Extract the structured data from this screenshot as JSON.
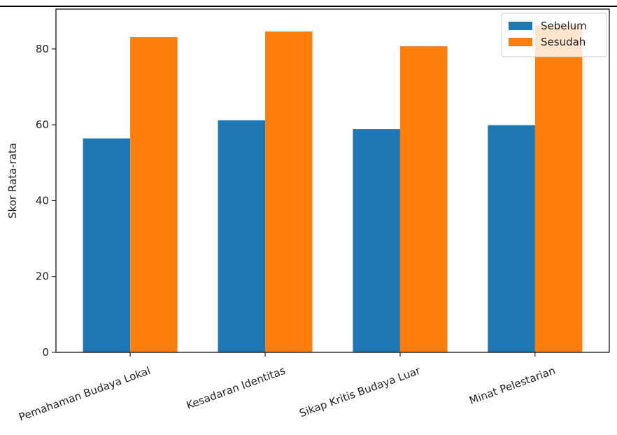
{
  "chart_data": {
    "type": "bar",
    "categories": [
      "Pemahaman Budaya Lokal",
      "Kesadaran Identitas",
      "Sikap Kritis Budaya Luar",
      "Minat Pelestarian"
    ],
    "series": [
      {
        "name": "Sebelum",
        "values": [
          56.4,
          61.2,
          58.9,
          59.9
        ],
        "color": "#1f77b4"
      },
      {
        "name": "Sesudah",
        "values": [
          83.1,
          84.6,
          80.7,
          86.2
        ],
        "color": "#ff7f0e"
      }
    ],
    "xlabel": "",
    "ylabel": "Skor Rata-rata",
    "yticks": [
      0,
      20,
      40,
      60,
      80
    ],
    "ylim": [
      0,
      90.5
    ],
    "grid": false,
    "legend_position": "top-right"
  }
}
